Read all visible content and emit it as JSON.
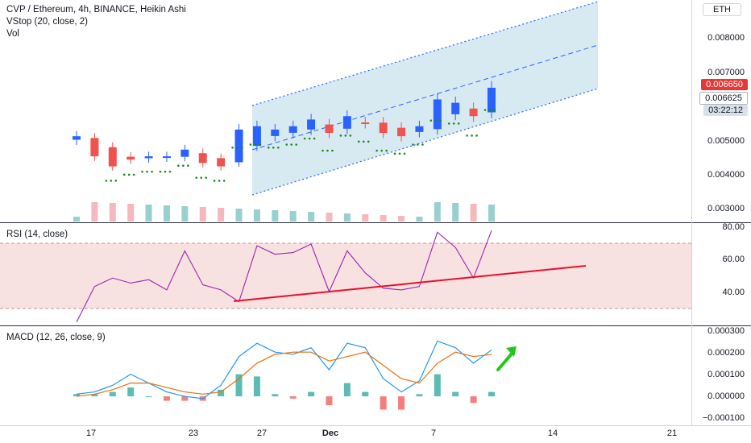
{
  "header": {
    "title": "CVP / Ethereum, 4h, BINANCE, Heikin Ashi",
    "indicator_vstop": "VStop (20, close, 2)",
    "indicator_vol": "Vol",
    "currency": "ETH"
  },
  "rsi_panel": {
    "title": "RSI (14, close)",
    "axis_labels": [
      "80.00",
      "60.00",
      "40.00"
    ]
  },
  "macd_panel": {
    "title": "MACD (12, 26, close, 9)",
    "axis_labels": [
      "0.000300",
      "0.000200",
      "0.000100",
      "0.000000",
      "−0.000100"
    ]
  },
  "price_axis": {
    "labels": [
      "0.008000",
      "0.007000",
      "0.005000",
      "0.004000",
      "0.003000"
    ],
    "last_price": "0.006650",
    "vstop_price": "0.006625",
    "countdown": "03:22:12"
  },
  "time_axis": {
    "labels": [
      "17",
      "23",
      "27",
      "Dec",
      "7",
      "14",
      "21"
    ]
  },
  "colors": {
    "up": "#2962ff",
    "down": "#ef5350",
    "vstop": "#1b8a1b",
    "channel_fill": "#c9e3ee",
    "rsi_line": "#9c27b0",
    "trend_line": "#e8102a",
    "macd_line": "#2196f3",
    "signal_line": "#e6700f",
    "arrow": "#22c71e"
  },
  "chart_data": [
    {
      "type": "line",
      "title": "CVP / Ethereum, 4h, BINANCE, Heikin Ashi",
      "series_kind": "candlestick-approx",
      "x": [
        "17",
        "18",
        "19",
        "20",
        "21",
        "22",
        "23",
        "24",
        "25",
        "26",
        "27",
        "28",
        "29",
        "30",
        "Dec",
        "2",
        "3",
        "4",
        "5",
        "6",
        "7",
        "8",
        "9",
        "10"
      ],
      "close": [
        0.0052,
        0.0046,
        0.0043,
        0.0045,
        0.0046,
        0.0046,
        0.0048,
        0.0044,
        0.0043,
        0.0054,
        0.0055,
        0.0054,
        0.0055,
        0.0057,
        0.0053,
        0.0058,
        0.0056,
        0.0053,
        0.0052,
        0.0055,
        0.0063,
        0.0062,
        0.0058,
        0.00665
      ],
      "ylim": [
        0.0027,
        0.0092
      ]
    },
    {
      "type": "line",
      "title": "RSI (14, close)",
      "x": [
        "17",
        "18",
        "19",
        "20",
        "21",
        "22",
        "23",
        "24",
        "25",
        "26",
        "27",
        "28",
        "29",
        "30",
        "Dec",
        "2",
        "3",
        "4",
        "5",
        "6",
        "7",
        "8",
        "9",
        "10"
      ],
      "values": [
        26,
        47,
        52,
        49,
        51,
        45,
        68,
        48,
        45,
        38,
        71,
        66,
        67,
        72,
        44,
        68,
        55,
        46,
        45,
        47,
        79,
        70,
        52,
        80
      ],
      "ylim": [
        25,
        82
      ]
    },
    {
      "type": "line",
      "title": "MACD (12, 26, close, 9)",
      "x": [
        "17",
        "18",
        "19",
        "20",
        "21",
        "22",
        "23",
        "24",
        "25",
        "26",
        "27",
        "28",
        "29",
        "30",
        "Dec",
        "2",
        "3",
        "4",
        "5",
        "6",
        "7",
        "8",
        "9",
        "10"
      ],
      "series": [
        {
          "values": [
            1e-05,
            2e-05,
            5e-05,
            0.0001,
            6e-05,
            2e-05,
            0.0,
            -1e-05,
            5e-05,
            0.00018,
            0.00024,
            0.0002,
            0.00019,
            0.00022,
            0.00012,
            0.00024,
            0.00022,
            8e-05,
            2e-05,
            7e-05,
            0.00025,
            0.00022,
            0.00015,
            0.00021
          ]
        },
        {
          "values": [
            0.0,
            1e-05,
            3e-05,
            6e-05,
            6e-05,
            4e-05,
            2e-05,
            1e-05,
            2e-05,
            8e-05,
            0.00015,
            0.00019,
            0.0002,
            0.0002,
            0.00016,
            0.00018,
            0.0002,
            0.00014,
            8e-05,
            6e-05,
            0.00015,
            0.0002,
            0.00018,
            0.00019
          ]
        }
      ],
      "ylim": [
        -0.00012,
        0.00031
      ]
    }
  ]
}
